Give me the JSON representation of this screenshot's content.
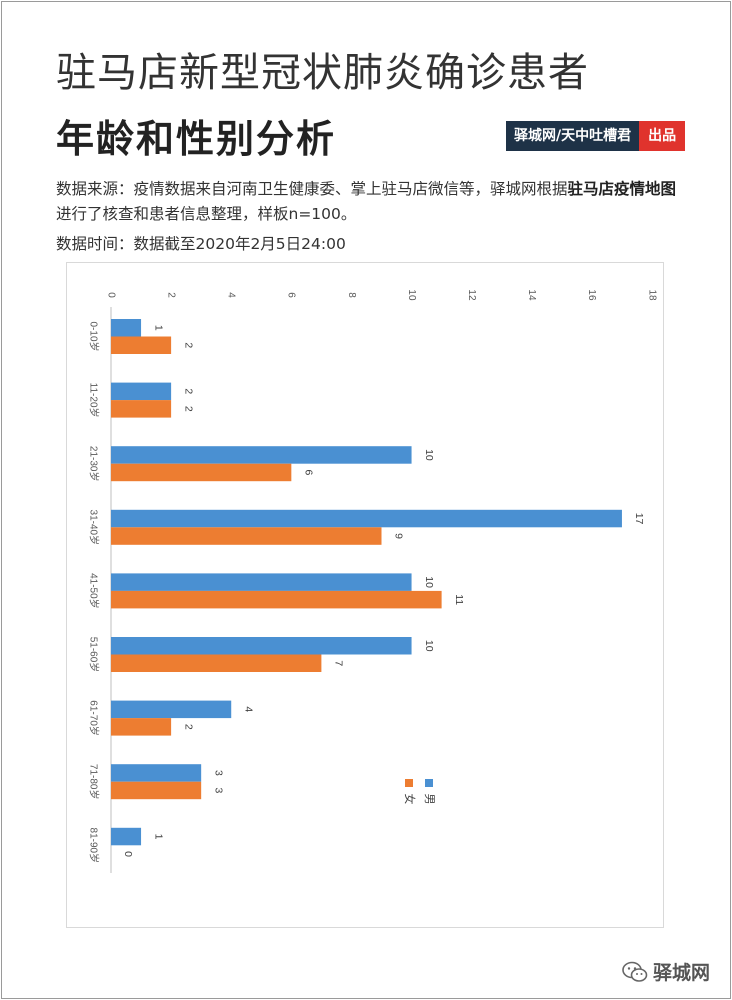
{
  "header": {
    "title_line1": "驻马店新型冠状肺炎确诊患者",
    "title_line2": "年龄和性别分析",
    "badge_source": "驿城网/天中吐槽君",
    "badge_output": "出品"
  },
  "description": {
    "part1": "数据来源：疫情数据来自河南卫生健康委、掌上驻马店微信等，驿城网根据",
    "bold": "驻马店疫情地图",
    "part2": "进行了核查和患者信息整理，样板n=100。",
    "time": "数据时间：数据截至2020年2月5日24:00"
  },
  "watermark": {
    "text": "驿城网",
    "icon": "wechat-icon"
  },
  "chart_data": {
    "type": "bar",
    "orientation": "horizontal",
    "categories": [
      "0-10岁",
      "11-20岁",
      "21-30岁",
      "31-40岁",
      "41-50岁",
      "51-60岁",
      "61-70岁",
      "71-80岁",
      "81-90岁"
    ],
    "series": [
      {
        "name": "男",
        "color": "#4a90d2",
        "values": [
          1,
          2,
          10,
          17,
          10,
          10,
          4,
          3,
          1
        ]
      },
      {
        "name": "女",
        "color": "#ed7d31",
        "values": [
          2,
          2,
          6,
          9,
          11,
          7,
          2,
          3,
          0
        ]
      }
    ],
    "xlim": [
      0,
      18
    ],
    "ticks": [
      0,
      2,
      4,
      6,
      8,
      10,
      12,
      14,
      16,
      18
    ],
    "grid": false,
    "legend": "right"
  }
}
